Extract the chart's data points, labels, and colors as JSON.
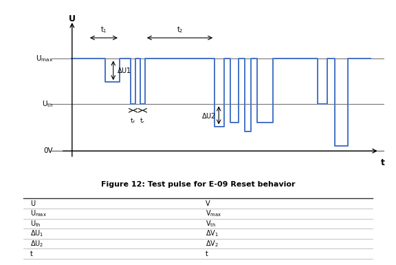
{
  "title": "Figure 12: Test pulse for E-09 Reset behavior",
  "umax": 0.75,
  "uth": 0.38,
  "signal_color": "#4472C4",
  "line_color": "#666666",
  "bg_color": "#ffffff",
  "table_rows_left": [
    "U",
    "U_max",
    "U_th",
    "ΔU₁",
    "ΔU₂",
    "t"
  ],
  "table_rows_right": [
    "V",
    "V_max",
    "V_th",
    "ΔV₁",
    "ΔV₂",
    "t"
  ]
}
